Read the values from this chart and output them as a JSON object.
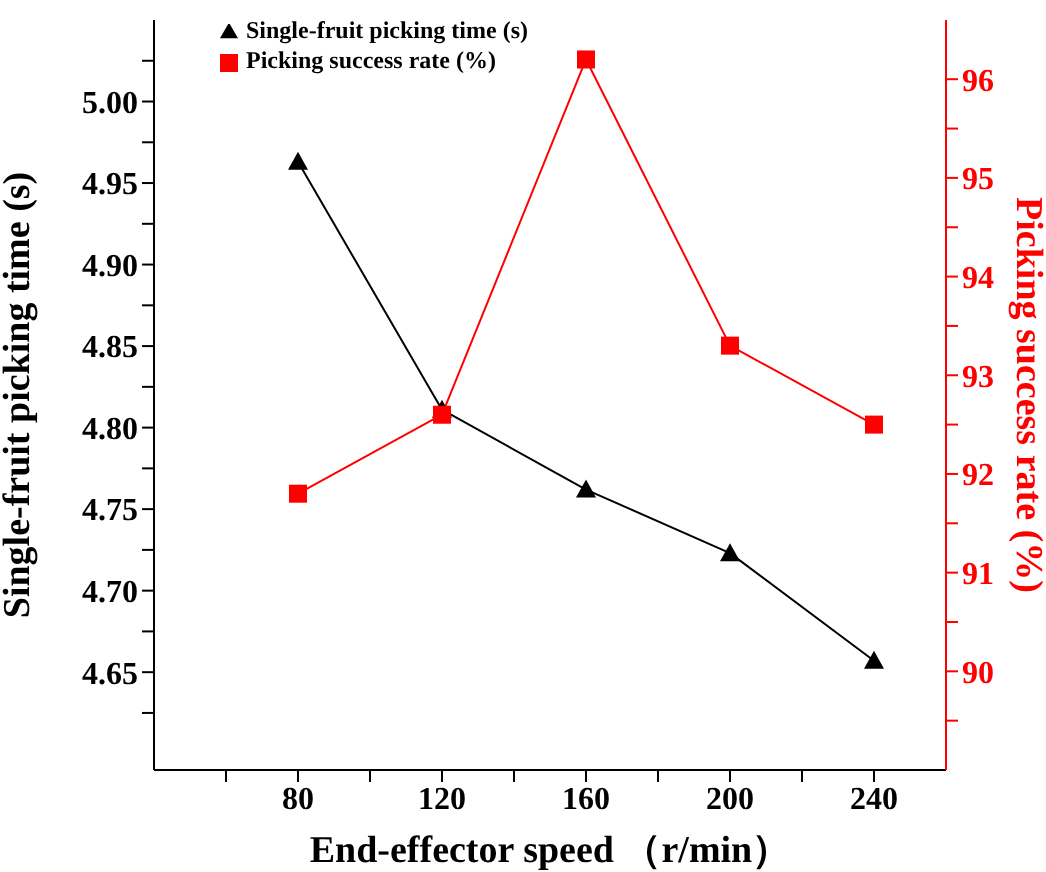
{
  "chart_data": {
    "type": "line",
    "xlabel": "End-effector speed （r/min）",
    "ylabel": "Single-fruit picking time (s)",
    "y2label": "Picking success rate (%)",
    "x": [
      80,
      120,
      160,
      200,
      240
    ],
    "series": [
      {
        "name": "Single-fruit picking time (s)",
        "color": "#000000",
        "marker": "triangle",
        "values": [
          4.963,
          4.811,
          4.762,
          4.723,
          4.657
        ]
      },
      {
        "name": "Picking success rate (%)",
        "color": "#ff0000",
        "marker": "square",
        "axis": "y2",
        "values": [
          91.8,
          92.6,
          96.2,
          93.3,
          92.5
        ]
      }
    ],
    "xlim": [
      40,
      260
    ],
    "xticks": [
      {
        "value": 60,
        "label": null
      },
      80,
      {
        "value": 100,
        "label": null
      },
      120,
      {
        "value": 140,
        "label": null
      },
      160,
      {
        "value": 180,
        "label": null
      },
      200,
      {
        "value": 220,
        "label": null
      },
      240
    ],
    "ylim": [
      4.59,
      5.05
    ],
    "yticks": [
      {
        "value": 4.625,
        "label": null
      },
      4.65,
      {
        "value": 4.675,
        "label": null
      },
      {
        "value": 4.7,
        "label": "4.70"
      },
      {
        "value": 4.725,
        "label": null
      },
      4.75,
      {
        "value": 4.775,
        "label": null
      },
      {
        "value": 4.8,
        "label": "4.80"
      },
      {
        "value": 4.825,
        "label": null
      },
      4.85,
      {
        "value": 4.875,
        "label": null
      },
      {
        "value": 4.9,
        "label": "4.90"
      },
      {
        "value": 4.925,
        "label": null
      },
      4.95,
      {
        "value": 4.975,
        "label": null
      },
      {
        "value": 5,
        "label": "5.00"
      },
      {
        "value": 5.025,
        "label": null
      }
    ],
    "y2lim": [
      89,
      96.6
    ],
    "y2ticks": [
      {
        "value": 89.5,
        "label": null
      },
      90,
      {
        "value": 90.5,
        "label": null
      },
      91,
      {
        "value": 91.5,
        "label": null
      },
      92,
      {
        "value": 92.5,
        "label": null
      },
      93,
      {
        "value": 93.5,
        "label": null
      },
      94,
      {
        "value": 94.5,
        "label": null
      },
      95,
      {
        "value": 95.5,
        "label": null
      },
      96
    ],
    "grid": false,
    "legend": "top left",
    "line_style": "solid"
  }
}
